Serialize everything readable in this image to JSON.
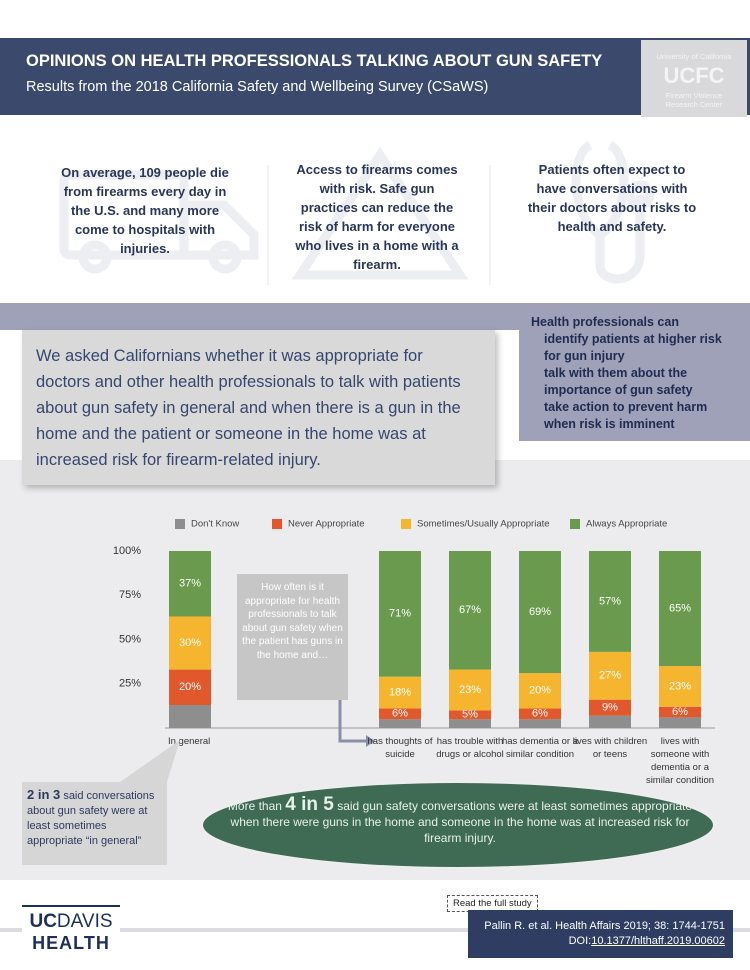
{
  "header": {
    "title": "OPINIONS ON HEALTH PROFESSIONALS TALKING ABOUT GUN SAFETY",
    "subtitle": "Results from the 2018 California Safety and Wellbeing Survey (CSaWS)"
  },
  "logo": {
    "institution": "University of California",
    "name": "UCFC",
    "center": "Firearm Violence Research Center"
  },
  "facts": [
    "On average, 109 people die from firearms every day in the U.S. and many more come to hospitals with injuries.",
    "Access to firearms comes with risk. Safe gun practices can reduce the risk of harm for everyone who lives in a home with a firearm.",
    "Patients often expect to have conversations with their doctors about risks to health and safety."
  ],
  "question": "We asked Californians whether it was appropriate for doctors and other health professionals to talk with patients about gun safety in general and when there is a gun in the home and the patient or someone in the home was at increased risk for firearm-related injury.",
  "roles": {
    "intro": "Health professionals can",
    "items": [
      "identify patients at higher risk for gun injury",
      "talk with them about the importance of gun safety",
      "take action to prevent harm when risk is imminent"
    ]
  },
  "chart_data": {
    "type": "bar",
    "stacked": true,
    "legend": "top",
    "categories": [
      "In general",
      "has thoughts of suicide",
      "has trouble with drugs or alcohol",
      "has dementia or a similar condition",
      "lives with children or teens",
      "lives with someone with dementia or a similar condition"
    ],
    "series": [
      {
        "name": "Don't Know",
        "color": "#8e8e8e",
        "values": [
          13,
          5,
          5,
          5,
          7,
          6
        ]
      },
      {
        "name": "Never Appropriate",
        "color": "#e0582b",
        "values": [
          20,
          6,
          5,
          6,
          9,
          6
        ],
        "value_labels": [
          "20%",
          "6%",
          "5%",
          "6%",
          "9%",
          "6%"
        ]
      },
      {
        "name": "Sometimes/Usually Appropriate",
        "color": "#f6b52f",
        "values": [
          30,
          18,
          23,
          20,
          27,
          23
        ],
        "value_labels": [
          "30%",
          "18%",
          "23%",
          "20%",
          "27%",
          "23%"
        ]
      },
      {
        "name": "Always Appropriate",
        "color": "#6a9a4e",
        "values": [
          37,
          71,
          67,
          69,
          57,
          65
        ],
        "value_labels": [
          "37%",
          "71%",
          "67%",
          "69%",
          "57%",
          "65%"
        ]
      }
    ],
    "ylim": [
      0,
      100
    ],
    "yticks": [
      {
        "value": 25,
        "label": "25%"
      },
      {
        "value": 50,
        "label": "50%"
      },
      {
        "value": 75,
        "label": "75%"
      },
      {
        "value": 100,
        "label": "100%"
      }
    ],
    "grid": false,
    "annotation": "How often is it appropriate for health professionals to talk about gun safety when the patient has guns in the home and…"
  },
  "callouts": {
    "general": {
      "highlight": "2 in 3",
      "text": "said conversations about gun safety were at least sometimes appropriate “in general”"
    },
    "risk": {
      "prefix": "More than",
      "highlight": "4 in 5",
      "text": "said gun safety conversations were at least sometimes appropriate when there were guns in the home and someone in the home was at increased risk for firearm injury."
    }
  },
  "footer": {
    "link": "Read the full study",
    "uc": "UC",
    "davis": "DAVIS",
    "health": "HEALTH",
    "citation": "Pallin R. et al. Health Affairs 2019; 38: 1744-1751",
    "doi_prefix": "DOI:",
    "doi": "10.1377/hlthaff.2019.00602"
  }
}
